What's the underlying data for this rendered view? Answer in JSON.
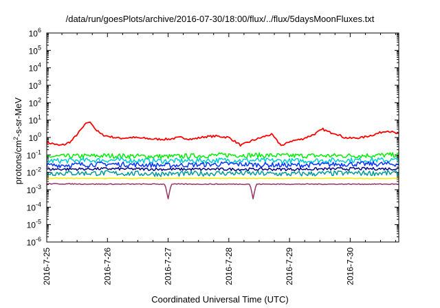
{
  "chart_data": {
    "type": "line",
    "title": "/data/run/goesPlots/archive/2016-07-30/18:00/flux/../flux/5daysMoonFluxes.txt",
    "xlabel": "Coordinated Universal Time (UTC)",
    "ylabel_prefix": "protons/cm",
    "ylabel_sup": "2",
    "ylabel_suffix": "-s-sr-MeV",
    "y_scale": "log",
    "ylim": [
      1e-06,
      1000000.0
    ],
    "y_tick_exponents": [
      -6,
      -5,
      -4,
      -3,
      -2,
      -1,
      0,
      1,
      2,
      3,
      4,
      5,
      6
    ],
    "x_range_days": [
      0,
      5.8
    ],
    "x_ticks": [
      "2016-7-25",
      "2016-7-26",
      "2016-7-27",
      "2016-7-28",
      "2016-7-29",
      "2016-7-30"
    ],
    "grid": false,
    "series": [
      {
        "color": "#ff0000",
        "points": [
          [
            0,
            0.5
          ],
          [
            0.1,
            0.45
          ],
          [
            0.2,
            0.35
          ],
          [
            0.3,
            0.4
          ],
          [
            0.4,
            0.6
          ],
          [
            0.5,
            1.5
          ],
          [
            0.6,
            4
          ],
          [
            0.68,
            8
          ],
          [
            0.75,
            6
          ],
          [
            0.8,
            3
          ],
          [
            0.9,
            1.5
          ],
          [
            1.0,
            1.2
          ],
          [
            1.2,
            0.9
          ],
          [
            1.4,
            1.0
          ],
          [
            1.6,
            0.9
          ],
          [
            1.8,
            0.8
          ],
          [
            2.0,
            0.8
          ],
          [
            2.2,
            1.0
          ],
          [
            2.4,
            0.8
          ],
          [
            2.6,
            1.1
          ],
          [
            2.8,
            1.2
          ],
          [
            3.0,
            1.0
          ],
          [
            3.1,
            0.6
          ],
          [
            3.2,
            0.35
          ],
          [
            3.3,
            0.5
          ],
          [
            3.4,
            0.7
          ],
          [
            3.5,
            0.9
          ],
          [
            3.6,
            1.2
          ],
          [
            3.7,
            1.5
          ],
          [
            3.75,
            1.0
          ],
          [
            3.8,
            0.6
          ],
          [
            3.85,
            0.4
          ],
          [
            3.9,
            0.35
          ],
          [
            4.0,
            0.6
          ],
          [
            4.1,
            0.7
          ],
          [
            4.2,
            0.8
          ],
          [
            4.4,
            1.5
          ],
          [
            4.55,
            3
          ],
          [
            4.65,
            2
          ],
          [
            4.75,
            1.8
          ],
          [
            4.9,
            1.0
          ],
          [
            5.0,
            0.9
          ],
          [
            5.2,
            1.0
          ],
          [
            5.4,
            1.5
          ],
          [
            5.6,
            2.5
          ],
          [
            5.7,
            2.0
          ],
          [
            5.8,
            1.5
          ]
        ]
      },
      {
        "color": "#00ee00",
        "points": [
          [
            0,
            0.08
          ],
          [
            1,
            0.09
          ],
          [
            2,
            0.08
          ],
          [
            3,
            0.1
          ],
          [
            4,
            0.09
          ],
          [
            5,
            0.09
          ],
          [
            5.8,
            0.1
          ]
        ]
      },
      {
        "color": "#00cccc",
        "points": [
          [
            0,
            0.045
          ],
          [
            1,
            0.05
          ],
          [
            2,
            0.045
          ],
          [
            3,
            0.05
          ],
          [
            4,
            0.045
          ],
          [
            5,
            0.05
          ],
          [
            5.8,
            0.05
          ]
        ]
      },
      {
        "color": "#0033ff",
        "points": [
          [
            0,
            0.025
          ],
          [
            1,
            0.03
          ],
          [
            2,
            0.025
          ],
          [
            3,
            0.03
          ],
          [
            4,
            0.025
          ],
          [
            5,
            0.03
          ],
          [
            5.8,
            0.03
          ]
        ]
      },
      {
        "color": "#000080",
        "points": [
          [
            0,
            0.015
          ],
          [
            1,
            0.016
          ],
          [
            2,
            0.015
          ],
          [
            3,
            0.015
          ],
          [
            4,
            0.015
          ],
          [
            5,
            0.016
          ],
          [
            5.8,
            0.016
          ]
        ]
      },
      {
        "color": "#009999",
        "points": [
          [
            0,
            0.009
          ],
          [
            1,
            0.009
          ],
          [
            2,
            0.008
          ],
          [
            3,
            0.009
          ],
          [
            4,
            0.008
          ],
          [
            5,
            0.009
          ],
          [
            5.8,
            0.009
          ]
        ]
      },
      {
        "color": "#ffee00",
        "points": [
          [
            0,
            0.0045
          ],
          [
            1,
            0.0045
          ],
          [
            2,
            0.0045
          ],
          [
            3,
            0.0045
          ],
          [
            4,
            0.0045
          ],
          [
            5,
            0.0045
          ],
          [
            5.8,
            0.0045
          ]
        ]
      },
      {
        "color": "#993366",
        "points": [
          [
            0,
            0.0022
          ],
          [
            1,
            0.0021
          ],
          [
            1.95,
            0.0021
          ],
          [
            2.0,
            0.0003
          ],
          [
            2.05,
            0.0021
          ],
          [
            3,
            0.0021
          ],
          [
            3.35,
            0.0021
          ],
          [
            3.4,
            0.0003
          ],
          [
            3.45,
            0.0021
          ],
          [
            4,
            0.0021
          ],
          [
            5,
            0.0021
          ],
          [
            5.8,
            0.0021
          ]
        ]
      }
    ]
  }
}
